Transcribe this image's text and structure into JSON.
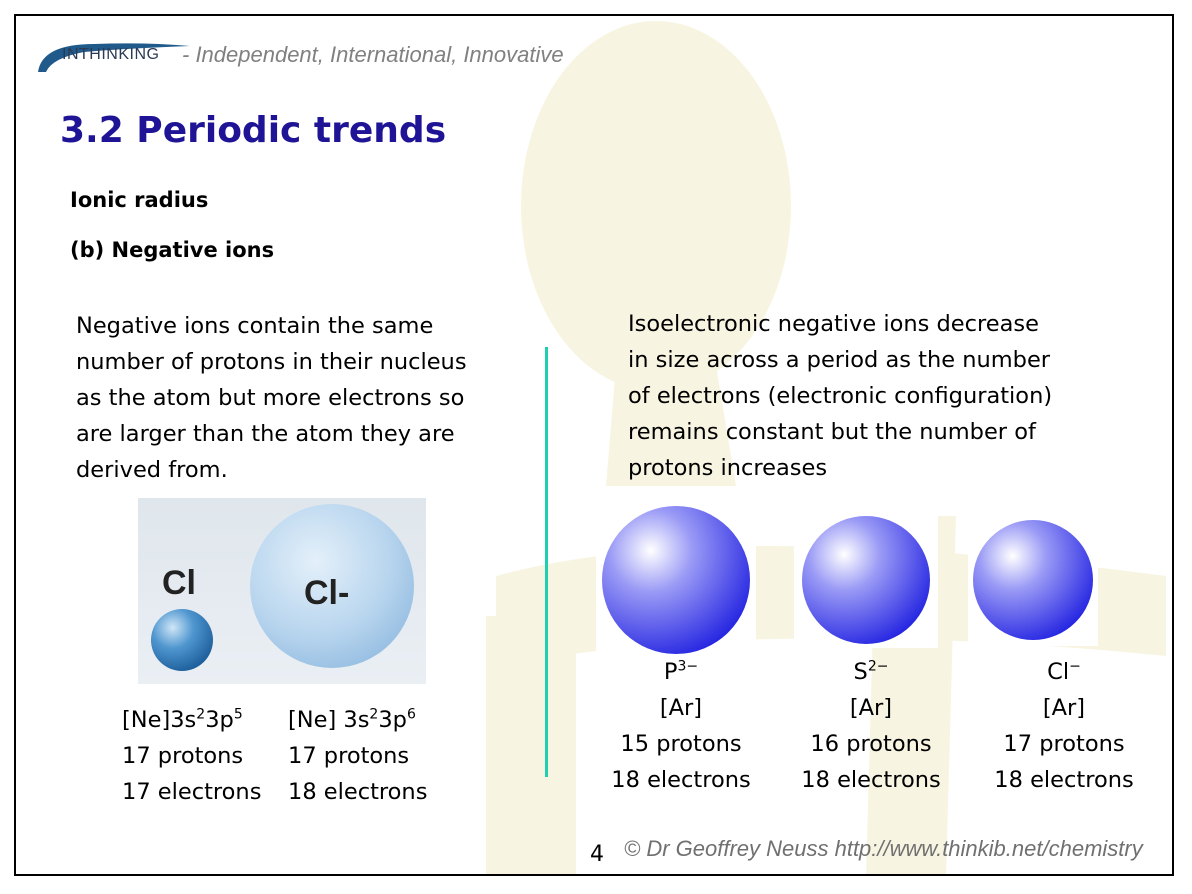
{
  "header": {
    "logo_text": "INTHINKING",
    "tagline": "- Independent, International, Innovative"
  },
  "title": "3.2 Periodic trends",
  "section": "Ionic radius",
  "subsection": "(b) Negative ions",
  "left_paragraph": "Negative ions contain the same\nnumber of protons in their nucleus\nas the atom but more electrons so\nare larger than the atom they are\nderived from.",
  "right_paragraph": "Isoelectronic negative ions decrease\nin size across a period as the number\nof electrons (electronic configuration)\nremains constant but the number of\nprotons increases",
  "cl_comparison": {
    "atom_label": "Cl",
    "ion_label": "Cl-",
    "atom": {
      "config_base": "[Ne]3s",
      "config_exp1": "2",
      "config_mid": "3p",
      "config_exp2": "5",
      "protons": "17 protons",
      "electrons": "17 electrons"
    },
    "ion": {
      "config_base": "[Ne] 3s",
      "config_exp1": "2",
      "config_mid": "3p",
      "config_exp2": "6",
      "protons": "17 protons",
      "electrons": "18 electrons"
    }
  },
  "ions": [
    {
      "symbol": "P",
      "charge": "3−",
      "config": "[Ar]",
      "protons": "15 protons",
      "electrons": "18 electrons"
    },
    {
      "symbol": "S",
      "charge": "2−",
      "config": "[Ar]",
      "protons": "16 protons",
      "electrons": "18 electrons"
    },
    {
      "symbol": "Cl",
      "charge": "−",
      "config": "[Ar]",
      "protons": "17 protons",
      "electrons": "18 electrons"
    }
  ],
  "footer": {
    "page_number": "4",
    "copyright": "© Dr Geoffrey Neuss http://www.thinkib.net/chemistry"
  },
  "colors": {
    "title": "#1e1495",
    "divider": "#1ed0b0",
    "ion_sphere": "#2a2ae8"
  }
}
